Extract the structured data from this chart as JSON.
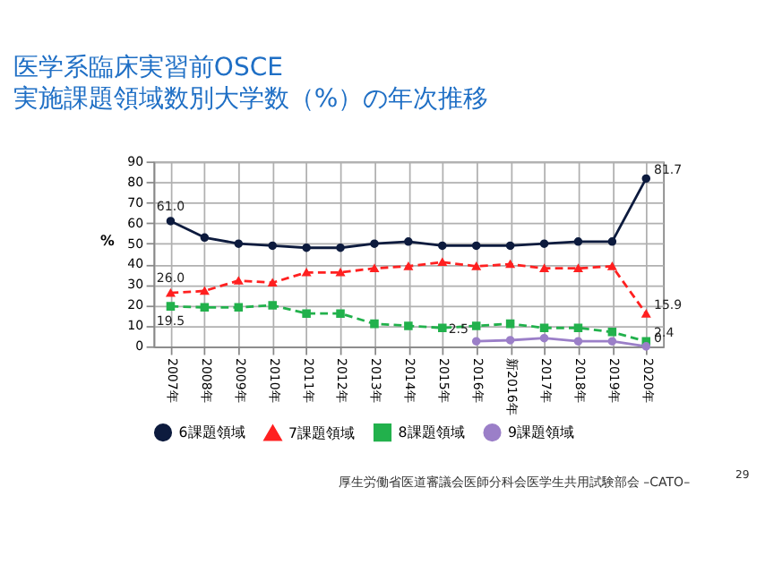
{
  "chart_data": {
    "type": "line",
    "title": [
      "医学系臨床実習前OSCE",
      "実施課題領域数別大学数（%）の年次推移"
    ],
    "ylabel": "%",
    "categories": [
      "2007年",
      "2008年",
      "2009年",
      "2010年",
      "2011年",
      "2012年",
      "2013年",
      "2014年",
      "2015年",
      "2016年",
      "新2016年",
      "2017年",
      "2018年",
      "2019年",
      "2020年"
    ],
    "series": [
      {
        "name": "6課題領域",
        "color": "#0d1b3e",
        "marker": "circle",
        "line_style": "solid",
        "values": [
          61.0,
          53,
          50,
          49,
          48,
          48,
          50,
          51,
          49,
          49,
          49,
          50,
          51,
          51,
          81.7
        ],
        "value_labels": [
          "61.0",
          null,
          null,
          null,
          null,
          null,
          null,
          null,
          null,
          null,
          null,
          null,
          null,
          null,
          "81.7"
        ]
      },
      {
        "name": "7課題領域",
        "color": "#ff2020",
        "marker": "triangle",
        "line_style": "dashed",
        "values": [
          26.0,
          27,
          32,
          31,
          36,
          36,
          38,
          39,
          41,
          39,
          40,
          38,
          38,
          39,
          15.9
        ],
        "value_labels": [
          "26.0",
          null,
          null,
          null,
          null,
          null,
          null,
          null,
          null,
          null,
          null,
          null,
          null,
          null,
          "15.9"
        ]
      },
      {
        "name": "8課題領域",
        "color": "#22b14c",
        "marker": "square",
        "line_style": "dashed",
        "values": [
          19.5,
          19,
          19,
          20,
          16,
          16,
          11,
          10,
          9,
          10,
          11,
          9,
          9,
          7,
          2.4
        ],
        "value_labels": [
          "19.5",
          null,
          null,
          null,
          null,
          null,
          null,
          null,
          null,
          null,
          null,
          null,
          null,
          null,
          "2.4"
        ]
      },
      {
        "name": "9課題領域",
        "color": "#9b7fc8",
        "marker": "circle",
        "line_style": "solid",
        "values": [
          null,
          null,
          null,
          null,
          null,
          null,
          null,
          null,
          null,
          2.5,
          3,
          4,
          2.5,
          2.5,
          0
        ],
        "value_labels": [
          null,
          null,
          null,
          null,
          null,
          null,
          null,
          null,
          null,
          "2.5",
          null,
          null,
          null,
          null,
          "0"
        ]
      }
    ],
    "ylim": [
      0,
      90
    ],
    "yticks": [
      0,
      10,
      20,
      30,
      40,
      50,
      60,
      70,
      80,
      90
    ],
    "grid": true,
    "legend": "bottom",
    "annotations": [
      "厚生労働省医道審議会医師分科会医学生共用試験部会 –CATO–",
      "29"
    ]
  }
}
